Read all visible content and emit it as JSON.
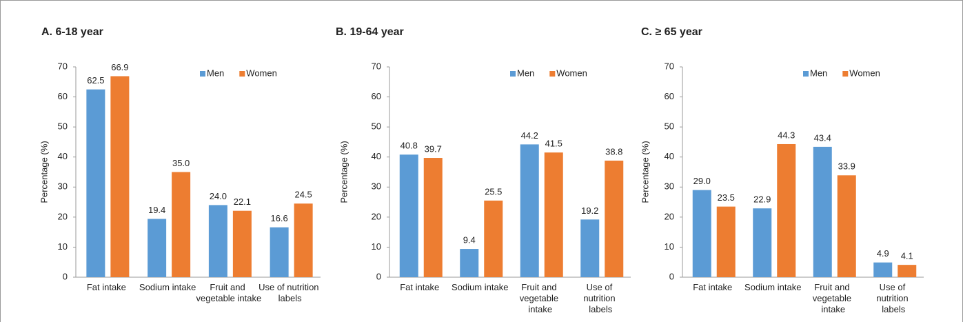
{
  "chart_data": [
    {
      "type": "bar",
      "title": "A. 6-18 year",
      "y_label": "Percentage (%)",
      "categories": [
        "Fat intake",
        "Sodium intake",
        "Fruit and vegetable intake",
        "Use of nutrition labels"
      ],
      "series": [
        {
          "name": "Men",
          "color": "#5b9bd5",
          "values": [
            62.5,
            19.4,
            24.0,
            16.6
          ],
          "value_labels": [
            "62.5",
            "19.4",
            "24.0",
            "16.6"
          ]
        },
        {
          "name": "Women",
          "color": "#ed7d31",
          "values": [
            66.9,
            35.0,
            22.1,
            24.5
          ],
          "value_labels": [
            "66.9",
            "35.0",
            "22.1",
            "24.5"
          ]
        }
      ],
      "ylim": [
        0,
        70
      ],
      "yticks": [
        0,
        10,
        20,
        30,
        40,
        50,
        60,
        70
      ],
      "legend": "top right"
    },
    {
      "type": "bar",
      "title": "B. 19-64 year",
      "y_label": "Percentage (%)",
      "categories": [
        "Fat intake",
        "Sodium intake",
        "Fruit and vegetable intake",
        "Use of nutrition labels"
      ],
      "series": [
        {
          "name": "Men",
          "color": "#5b9bd5",
          "values": [
            40.8,
            9.4,
            44.2,
            19.2
          ],
          "value_labels": [
            "40.8",
            "9.4",
            "44.2",
            "19.2"
          ]
        },
        {
          "name": "Women",
          "color": "#ed7d31",
          "values": [
            39.7,
            25.5,
            41.5,
            38.8
          ],
          "value_labels": [
            "39.7",
            "25.5",
            "41.5",
            "38.8"
          ]
        }
      ],
      "ylim": [
        0,
        70
      ],
      "yticks": [
        0,
        10,
        20,
        30,
        40,
        50,
        60,
        70
      ],
      "legend": "top right"
    },
    {
      "type": "bar",
      "title": "C. ≥ 65 year",
      "y_label": "Percentage (%)",
      "categories": [
        "Fat intake",
        "Sodium intake",
        "Fruit and vegetable intake",
        "Use of nutrition labels"
      ],
      "series": [
        {
          "name": "Men",
          "color": "#5b9bd5",
          "values": [
            29.0,
            22.9,
            43.4,
            4.9
          ],
          "value_labels": [
            "29.0",
            "22.9",
            "43.4",
            "4.9"
          ]
        },
        {
          "name": "Women",
          "color": "#ed7d31",
          "values": [
            23.5,
            44.3,
            33.9,
            4.1
          ],
          "value_labels": [
            "23.5",
            "44.3",
            "33.9",
            "4.1"
          ]
        }
      ],
      "ylim": [
        0,
        70
      ],
      "yticks": [
        0,
        10,
        20,
        30,
        40,
        50,
        60,
        70
      ],
      "legend": "top right"
    }
  ]
}
